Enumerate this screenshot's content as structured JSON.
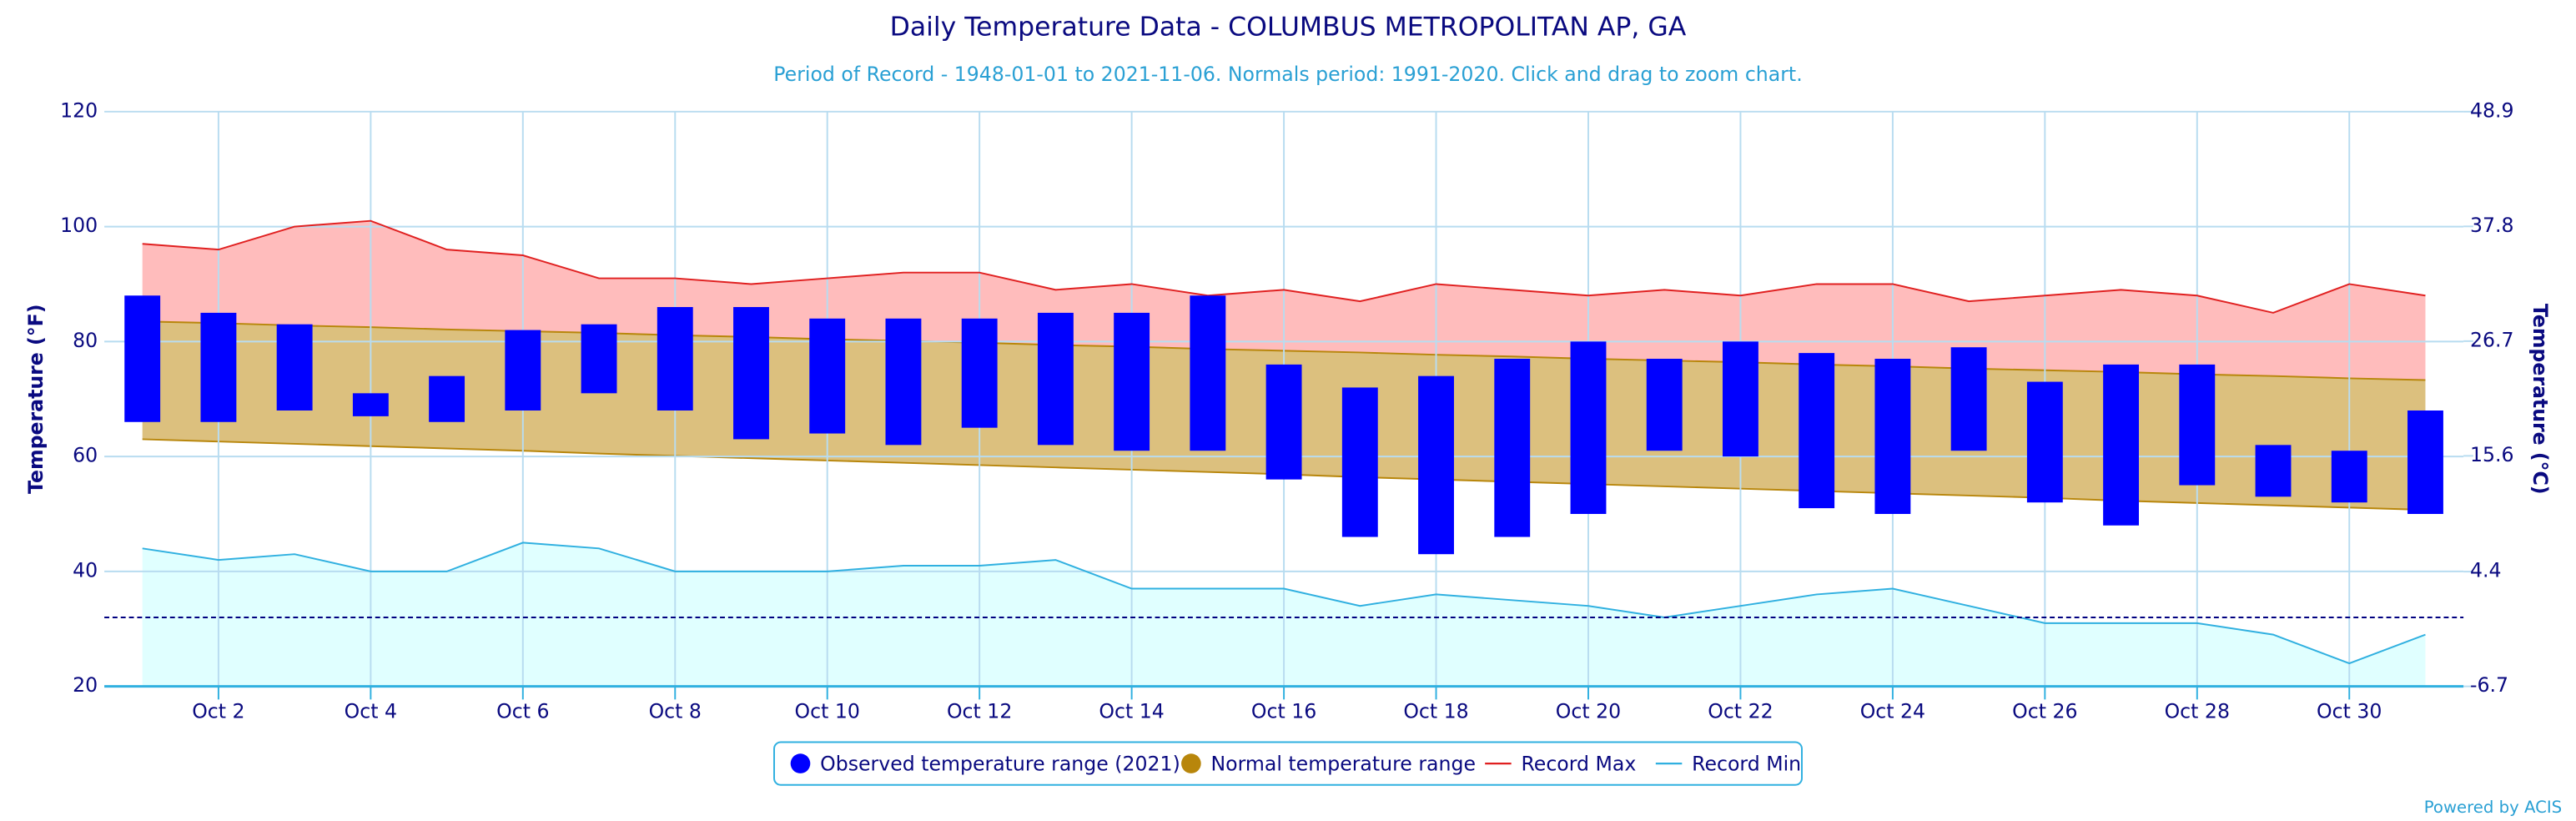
{
  "chart_data": {
    "type": "combo",
    "title": "Daily Temperature Data - COLUMBUS METROPOLITAN AP, GA",
    "subtitle": "Period of Record - 1948-01-01 to 2021-11-06. Normals period: 1991-2020. Click and drag to zoom chart.",
    "y_label": "Temperature (°F)",
    "y2_label": "Temperature (°C)",
    "credit": "Powered by ACIS",
    "x": [
      1,
      2,
      3,
      4,
      5,
      6,
      7,
      8,
      9,
      10,
      11,
      12,
      13,
      14,
      15,
      16,
      17,
      18,
      19,
      20,
      21,
      22,
      23,
      24,
      25,
      26,
      27,
      28,
      29,
      30,
      31
    ],
    "xlim": [
      0.5,
      31.5
    ],
    "xticks": [
      {
        "value": 2,
        "label": "Oct 2"
      },
      {
        "value": 4,
        "label": "Oct 4"
      },
      {
        "value": 6,
        "label": "Oct 6"
      },
      {
        "value": 8,
        "label": "Oct 8"
      },
      {
        "value": 10,
        "label": "Oct 10"
      },
      {
        "value": 12,
        "label": "Oct 12"
      },
      {
        "value": 14,
        "label": "Oct 14"
      },
      {
        "value": 16,
        "label": "Oct 16"
      },
      {
        "value": 18,
        "label": "Oct 18"
      },
      {
        "value": 20,
        "label": "Oct 20"
      },
      {
        "value": 22,
        "label": "Oct 22"
      },
      {
        "value": 24,
        "label": "Oct 24"
      },
      {
        "value": 26,
        "label": "Oct 26"
      },
      {
        "value": 28,
        "label": "Oct 28"
      },
      {
        "value": 30,
        "label": "Oct 30"
      }
    ],
    "ylim": [
      20,
      120
    ],
    "yticks": [
      20,
      40,
      60,
      80,
      100,
      120
    ],
    "y2lim": [
      -6.7,
      48.9
    ],
    "y2ticks": [
      -6.7,
      4.4,
      15.6,
      26.7,
      37.8,
      48.9
    ],
    "grid": true,
    "reference_line": 32,
    "series": [
      {
        "name": "Record Max",
        "type": "line",
        "color": "#e02020",
        "fill": "#ffbcbc",
        "values": [
          97,
          96,
          100,
          101,
          96,
          95,
          91,
          91,
          90,
          91,
          92,
          92,
          89,
          90,
          88,
          89,
          87,
          90,
          89,
          88,
          89,
          88,
          90,
          90,
          87,
          88,
          89,
          88,
          85,
          90,
          88
        ]
      },
      {
        "name": "Record Min",
        "type": "line",
        "color": "#30b0e0",
        "fill": "#e0ffff",
        "values": [
          44,
          42,
          43,
          40,
          40,
          45,
          44,
          40,
          40,
          40,
          41,
          41,
          42,
          37,
          37,
          37,
          34,
          36,
          35,
          34,
          32,
          34,
          36,
          37,
          34,
          31,
          31,
          31,
          29,
          24,
          29
        ]
      },
      {
        "name": "Normal temperature range",
        "type": "area_range",
        "color": "#b8860b",
        "fill": "#dcc07e",
        "low": [
          63.0,
          62.6,
          62.2,
          61.8,
          61.4,
          61.0,
          60.5,
          60.1,
          59.7,
          59.3,
          58.9,
          58.5,
          58.1,
          57.7,
          57.3,
          56.9,
          56.4,
          56.0,
          55.6,
          55.2,
          54.8,
          54.4,
          54.0,
          53.6,
          53.2,
          52.8,
          52.3,
          51.9,
          51.5,
          51.1,
          50.7
        ],
        "high": [
          83.5,
          83.2,
          82.8,
          82.5,
          82.1,
          81.8,
          81.5,
          81.1,
          80.8,
          80.4,
          80.1,
          79.8,
          79.4,
          79.1,
          78.7,
          78.4,
          78.1,
          77.7,
          77.4,
          77.0,
          76.7,
          76.4,
          76.0,
          75.7,
          75.3,
          75.0,
          74.7,
          74.3,
          74.0,
          73.6,
          73.3
        ]
      },
      {
        "name": "Observed temperature range (2021)",
        "type": "range_bar",
        "color": "#0000ff",
        "low": [
          66,
          66,
          68,
          67,
          66,
          68,
          71,
          68,
          63,
          64,
          62,
          65,
          62,
          61,
          61,
          56,
          46,
          43,
          46,
          50,
          61,
          60,
          51,
          50,
          61,
          52,
          48,
          55,
          53,
          52,
          50
        ],
        "high": [
          88,
          85,
          83,
          71,
          74,
          82,
          83,
          86,
          86,
          84,
          84,
          84,
          85,
          85,
          88,
          76,
          72,
          74,
          77,
          80,
          77,
          80,
          78,
          77,
          79,
          73,
          76,
          76,
          62,
          61,
          68
        ]
      }
    ],
    "legend_order": [
      3,
      2,
      0,
      1
    ]
  }
}
